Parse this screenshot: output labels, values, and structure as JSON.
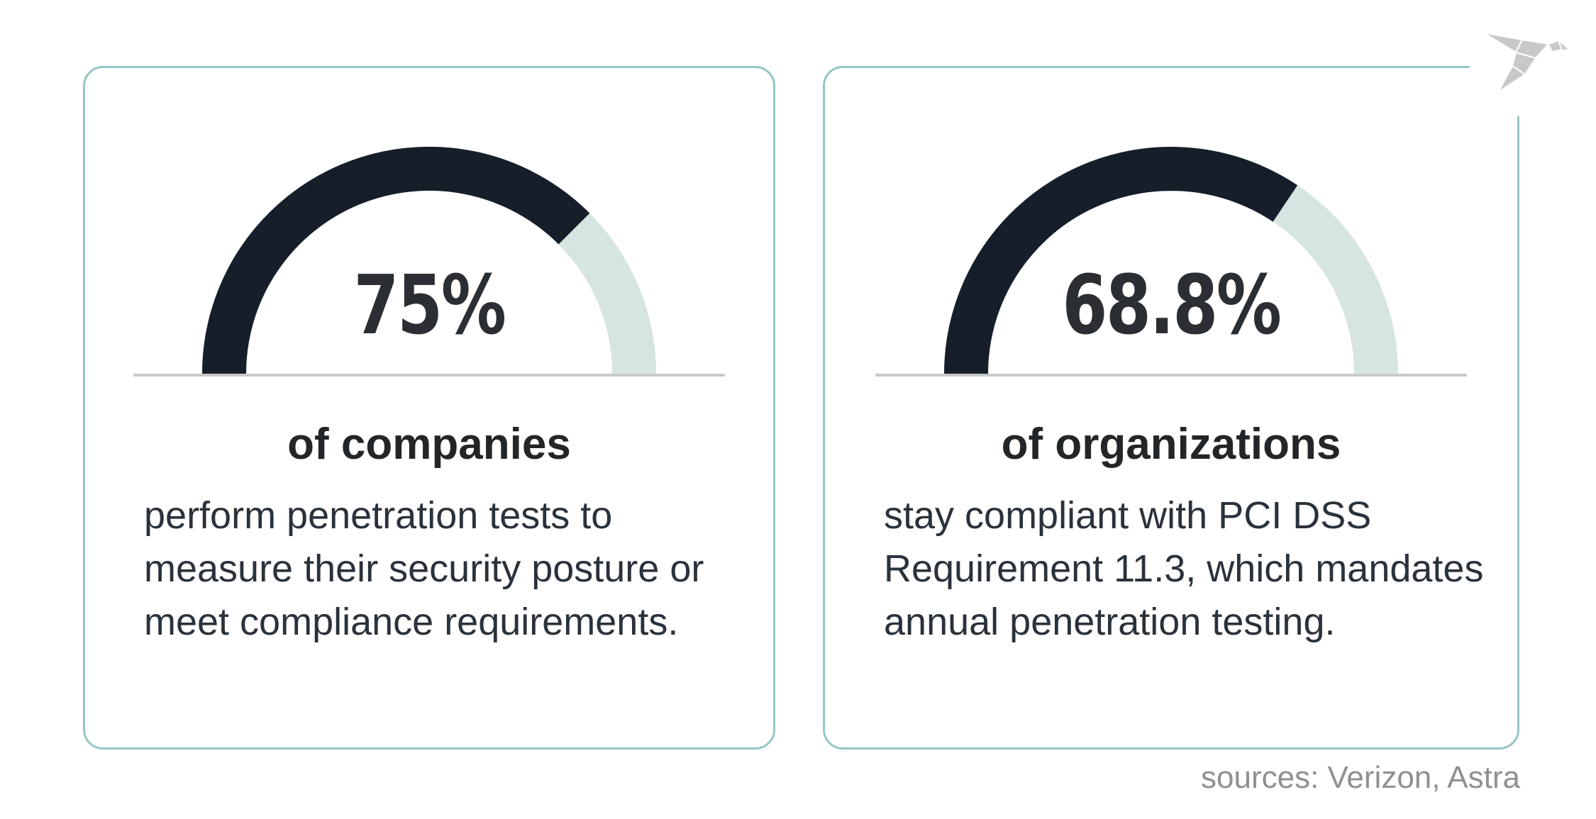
{
  "page": {
    "background": "#ffffff"
  },
  "palette": {
    "card_border": "#95c6c4",
    "gauge_fill": "#161f29",
    "gauge_track": "#d6e5e1",
    "baseline": "#c9c9c9",
    "number_text": "#2b2f33",
    "headline_text": "#232629",
    "body_text": "#2a323b",
    "sources_text": "#909090",
    "logo_gray": "#c7c9c9"
  },
  "cards": [
    {
      "gauge": {
        "percent": 75,
        "display": "75%"
      },
      "headline": "of companies",
      "description": "perform penetration tests to\nmeasure their security posture or\nmeet compliance requirements."
    },
    {
      "gauge": {
        "percent": 68.8,
        "display": "68.8%"
      },
      "headline": "of organizations",
      "description": "stay compliant with PCI DSS\nRequirement 11.3, which mandates\nannual penetration testing."
    }
  ],
  "logo": {
    "name": "origami-bird-logo",
    "color": "#c7c9c9"
  },
  "footer": {
    "sources_label": "sources: Verizon, Astra"
  },
  "chart_data": [
    {
      "type": "pie",
      "variant": "semicircle_gauge",
      "title": "75%",
      "label": "of companies",
      "categories": [
        "filled",
        "remainder"
      ],
      "values": [
        75,
        25
      ],
      "colors": [
        "#161f29",
        "#d6e5e1"
      ],
      "baseline_color": "#c9c9c9",
      "start_angle_deg": 180,
      "end_angle_deg": 0,
      "legend": "none",
      "xlabel": "",
      "ylabel": ""
    },
    {
      "type": "pie",
      "variant": "semicircle_gauge",
      "title": "68.8%",
      "label": "of organizations",
      "categories": [
        "filled",
        "remainder"
      ],
      "values": [
        68.8,
        31.2
      ],
      "colors": [
        "#161f29",
        "#d6e5e1"
      ],
      "baseline_color": "#c9c9c9",
      "start_angle_deg": 180,
      "end_angle_deg": 0,
      "legend": "none",
      "xlabel": "",
      "ylabel": ""
    }
  ]
}
